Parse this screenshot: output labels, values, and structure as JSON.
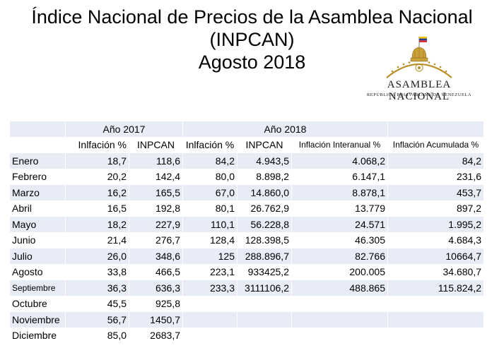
{
  "title": {
    "line1": "Índice Nacional de Precios de la Asamblea Nacional",
    "line2": "(INPCAN)",
    "line3": "Agosto 2018"
  },
  "logo": {
    "name": "ASAMBLEA NACIONAL",
    "subtitle": "REPÚBLICA BOLIVARIANA DE VENEZUELA",
    "colors": {
      "flag_yellow": "#f4c400",
      "flag_blue": "#1f3f95",
      "flag_red": "#d2232a",
      "gold": "#b8902a"
    }
  },
  "table": {
    "group_headers": {
      "y2017": "Año 2017",
      "y2018": "Año 2018"
    },
    "columns": {
      "infl_2017": "Inlfación %",
      "inpcan_2017": "INPCAN",
      "infl_2018": "Inlfación %",
      "inpcan_2018": "INPCAN",
      "interanual": "Inflación Interanual %",
      "acumulada": "Inflación Acumulada %"
    },
    "rows": [
      [
        "Enero",
        "18,7",
        "118,6",
        "84,2",
        "4.943,5",
        "4.068,2",
        "84,2"
      ],
      [
        "Febrero",
        "20,2",
        "142,4",
        "80,0",
        "8.898,2",
        "6.147,1",
        "231,6"
      ],
      [
        "Marzo",
        "16,2",
        "165,5",
        "67,0",
        "14.860,0",
        "8.878,1",
        "453,7"
      ],
      [
        "Abril",
        "16,5",
        "192,8",
        "80,1",
        "26.762,9",
        "13.779",
        "897,2"
      ],
      [
        "Mayo",
        "18,2",
        "227,9",
        "110,1",
        "56.228,8",
        "24.571",
        "1.995,2"
      ],
      [
        "Junio",
        "21,4",
        "276,7",
        "128,4",
        "128.398,5",
        "46.305",
        "4.684,3"
      ],
      [
        "Julio",
        "26,0",
        "348,6",
        "125",
        "288.896,7",
        "82.766",
        "10664,7"
      ],
      [
        "Agosto",
        "33,8",
        "466,5",
        "223,1",
        "933425,2",
        "200.005",
        "34.680,7"
      ],
      [
        "Septiembre",
        "36,3",
        "636,3",
        "233,3",
        "3111106,2",
        "488.865",
        "115.824,2"
      ],
      [
        "Octubre",
        "45,5",
        "925,8",
        "",
        "",
        "",
        ""
      ],
      [
        "Noviembre",
        "56,7",
        "1450,7",
        "",
        "",
        "",
        ""
      ],
      [
        "Diciembre",
        "85,0",
        "2683,7",
        "",
        "",
        "",
        ""
      ]
    ]
  }
}
